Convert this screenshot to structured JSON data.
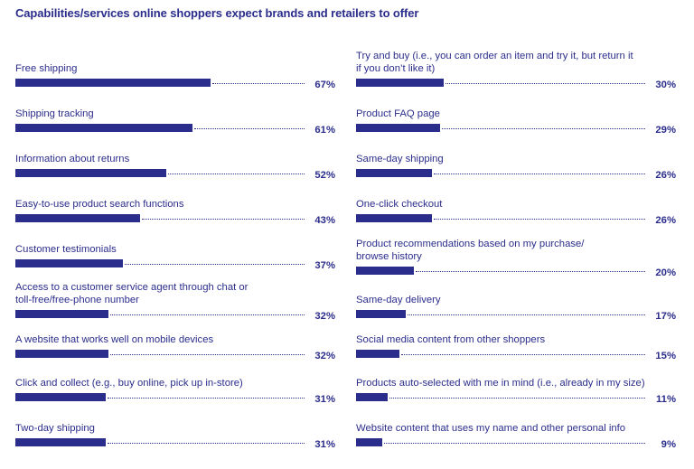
{
  "chart_data": {
    "type": "bar",
    "orientation": "horizontal",
    "title": "Capabilities/services online shoppers expect brands and retailers to offer",
    "unit": "%",
    "xlim": [
      0,
      100
    ],
    "panels": [
      {
        "name": "left",
        "bars": [
          {
            "label": "Free shipping",
            "value": 67,
            "value_label": "67%"
          },
          {
            "label": "Shipping tracking",
            "value": 61,
            "value_label": "61%"
          },
          {
            "label": "Information about returns",
            "value": 52,
            "value_label": "52%"
          },
          {
            "label": "Easy-to-use product search functions",
            "value": 43,
            "value_label": "43%"
          },
          {
            "label": "Customer testimonials",
            "value": 37,
            "value_label": "37%"
          },
          {
            "label": "Access to a customer service agent through chat or\ntoll-free/free-phone number",
            "value": 32,
            "value_label": "32%"
          },
          {
            "label": "A website that works well on mobile devices",
            "value": 32,
            "value_label": "32%"
          },
          {
            "label": "Click and collect (e.g., buy online, pick up in-store)",
            "value": 31,
            "value_label": "31%"
          },
          {
            "label": "Two-day shipping",
            "value": 31,
            "value_label": "31%"
          }
        ]
      },
      {
        "name": "right",
        "bars": [
          {
            "label": "Try and buy (i.e., you can order an item and try it, but return it\nif you don’t like it)",
            "value": 30,
            "value_label": "30%"
          },
          {
            "label": "Product FAQ page",
            "value": 29,
            "value_label": "29%"
          },
          {
            "label": "Same-day shipping",
            "value": 26,
            "value_label": "26%"
          },
          {
            "label": "One-click checkout",
            "value": 26,
            "value_label": "26%"
          },
          {
            "label": "Product recommendations based on my purchase/\nbrowse history",
            "value": 20,
            "value_label": "20%"
          },
          {
            "label": "Same-day delivery",
            "value": 17,
            "value_label": "17%"
          },
          {
            "label": "Social media content from other shoppers",
            "value": 15,
            "value_label": "15%"
          },
          {
            "label": "Products auto-selected with me in mind (i.e., already in my size)",
            "value": 11,
            "value_label": "11%"
          },
          {
            "label": "Website content that uses my name and other personal info",
            "value": 9,
            "value_label": "9%"
          }
        ]
      }
    ]
  },
  "colors": {
    "bar": "#2b2d8c",
    "text": "#2b2d8c"
  }
}
